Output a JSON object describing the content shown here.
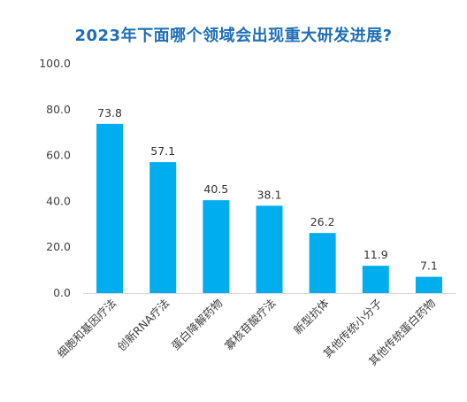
{
  "chart_data": {
    "type": "bar",
    "title": "2023年下面哪个领域会出现重大研发进展?",
    "categories": [
      "细胞和基因疗法",
      "创新RNA疗法",
      "蛋白降解药物",
      "寡核苷酸疗法",
      "新型抗体",
      "其他传统小分子",
      "其他传统蛋白药物"
    ],
    "values": [
      73.8,
      57.1,
      40.5,
      38.1,
      26.2,
      11.9,
      7.1
    ],
    "value_labels": [
      "73.8",
      "57.1",
      "40.5",
      "38.1",
      "26.2",
      "11.9",
      "7.1"
    ],
    "yticks": [
      "0.0",
      "20.0",
      "40.0",
      "60.0",
      "80.0",
      "100.0"
    ],
    "ylim": [
      0,
      100
    ],
    "grid": false,
    "legend": "none",
    "colors": {
      "bar": "#00aeef",
      "title": "#1f6fb5",
      "axis": "#d9d9d9"
    }
  }
}
